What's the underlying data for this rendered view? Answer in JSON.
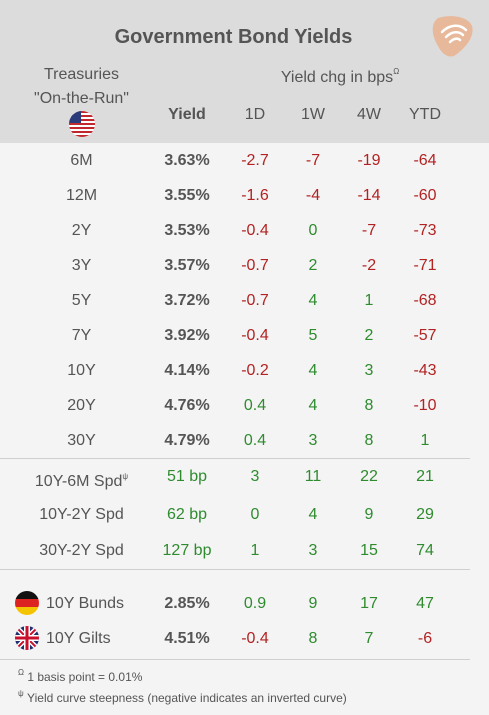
{
  "title": "Government Bond Yields",
  "treasuries_line1": "Treasuries",
  "treasuries_line2": "\"On-the-Run\"",
  "yield_chg_header": "Yield chg in bps",
  "yield_chg_marker": "Ω",
  "columns": {
    "yield": "Yield",
    "d1": "1D",
    "w1": "1W",
    "w4": "4W",
    "ytd": "YTD"
  },
  "treasuries": [
    {
      "label": "6M",
      "yield": "3.63%",
      "d1": "-2.7",
      "w1": "-7",
      "w4": "-19",
      "ytd": "-64"
    },
    {
      "label": "12M",
      "yield": "3.55%",
      "d1": "-1.6",
      "w1": "-4",
      "w4": "-14",
      "ytd": "-60"
    },
    {
      "label": "2Y",
      "yield": "3.53%",
      "d1": "-0.4",
      "w1": "0",
      "w4": "-7",
      "ytd": "-73"
    },
    {
      "label": "3Y",
      "yield": "3.57%",
      "d1": "-0.7",
      "w1": "2",
      "w4": "-2",
      "ytd": "-71"
    },
    {
      "label": "5Y",
      "yield": "3.72%",
      "d1": "-0.7",
      "w1": "4",
      "w4": "1",
      "ytd": "-68"
    },
    {
      "label": "7Y",
      "yield": "3.92%",
      "d1": "-0.4",
      "w1": "5",
      "w4": "2",
      "ytd": "-57"
    },
    {
      "label": "10Y",
      "yield": "4.14%",
      "d1": "-0.2",
      "w1": "4",
      "w4": "3",
      "ytd": "-43"
    },
    {
      "label": "20Y",
      "yield": "4.76%",
      "d1": "0.4",
      "w1": "4",
      "w4": "8",
      "ytd": "-10"
    },
    {
      "label": "30Y",
      "yield": "4.79%",
      "d1": "0.4",
      "w1": "3",
      "w4": "8",
      "ytd": "1"
    }
  ],
  "spreads": [
    {
      "label": "10Y-6M Spd",
      "marker": "ψ",
      "yield": "51 bp",
      "d1": "3",
      "w1": "11",
      "w4": "22",
      "ytd": "21"
    },
    {
      "label": "10Y-2Y Spd",
      "marker": "",
      "yield": "62 bp",
      "d1": "0",
      "w1": "4",
      "w4": "9",
      "ytd": "29"
    },
    {
      "label": "30Y-2Y Spd",
      "marker": "",
      "yield": "127 bp",
      "d1": "1",
      "w1": "3",
      "w4": "15",
      "ytd": "74"
    }
  ],
  "international": [
    {
      "label": "10Y Bunds",
      "flag": "germany-flag-icon",
      "yield": "2.85%",
      "d1": "0.9",
      "w1": "9",
      "w4": "17",
      "ytd": "47"
    },
    {
      "label": "10Y Gilts",
      "flag": "uk-flag-icon",
      "yield": "4.51%",
      "d1": "-0.4",
      "w1": "8",
      "w4": "7",
      "ytd": "-6"
    }
  ],
  "footnotes": [
    {
      "marker": "Ω",
      "text": "1 basis point = 0.01%"
    },
    {
      "marker": "ψ",
      "text": "Yield curve steepness (negative indicates an inverted curve)"
    }
  ],
  "colors": {
    "negative": "#b22222",
    "positive": "#2e8b2e",
    "header_bg": "#dcdcdc",
    "body_bg": "#f4f4f4",
    "logo": "#e8b89a"
  }
}
